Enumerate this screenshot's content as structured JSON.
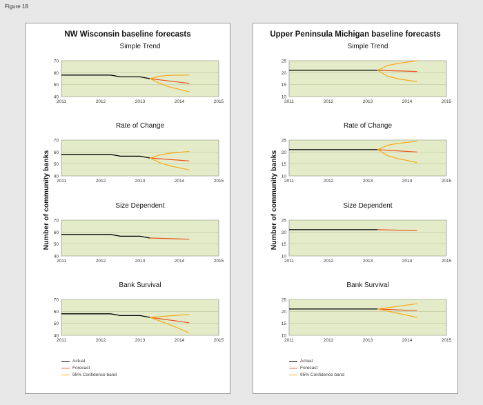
{
  "figure_label": "Figure 18",
  "panels": [
    {
      "title": "NW Wisconsin baseline forecasts",
      "ylabel": "Number of community banks",
      "legend": [
        "Actual",
        "Forecast",
        "95% Confidence band"
      ]
    },
    {
      "title": "Upper Peninsula Michigan baseline forecasts",
      "ylabel": "Number of community banks",
      "legend": [
        "Actual",
        "Forecast",
        "95% Confidence band"
      ]
    }
  ],
  "colors": {
    "actual": "#000000",
    "forecast": "#e8531c",
    "band": "#f7a81b",
    "plot_bg": "#e4ebc9",
    "grid": "#bcc79b"
  },
  "chart_data": [
    {
      "type": "line",
      "panel": 0,
      "title": "Simple Trend",
      "xlim": [
        2011,
        2015
      ],
      "xticks": [
        2011,
        2012,
        2013,
        2014,
        2015
      ],
      "ylim": [
        40,
        70
      ],
      "yticks": [
        40,
        50,
        60,
        70
      ],
      "series": [
        {
          "name": "Actual",
          "kind": "actual",
          "x": [
            2011,
            2012.25,
            2012.5,
            2013,
            2013.25
          ],
          "y": [
            58,
            58,
            56.5,
            56.5,
            55
          ]
        },
        {
          "name": "Forecast",
          "kind": "forecast",
          "x": [
            2013.25,
            2014.25
          ],
          "y": [
            55,
            51
          ]
        },
        {
          "name": "95% Confidence band",
          "kind": "band",
          "x": [
            2013.25,
            2013.5,
            2013.75,
            2014.25
          ],
          "y": [
            55,
            57,
            57.8,
            58
          ]
        },
        {
          "name": "95% Confidence band",
          "kind": "band",
          "x": [
            2013.25,
            2013.5,
            2013.75,
            2014.25
          ],
          "y": [
            55,
            51,
            48,
            44
          ]
        }
      ]
    },
    {
      "type": "line",
      "panel": 0,
      "title": "Rate of Change",
      "xlim": [
        2011,
        2015
      ],
      "xticks": [
        2011,
        2012,
        2013,
        2014,
        2015
      ],
      "ylim": [
        40,
        70
      ],
      "yticks": [
        40,
        50,
        60,
        70
      ],
      "series": [
        {
          "name": "Actual",
          "kind": "actual",
          "x": [
            2011,
            2012.25,
            2012.5,
            2013,
            2013.25
          ],
          "y": [
            58,
            58,
            56.5,
            56.5,
            55
          ]
        },
        {
          "name": "Forecast",
          "kind": "forecast",
          "x": [
            2013.25,
            2014.25
          ],
          "y": [
            55,
            52.5
          ]
        },
        {
          "name": "95% Confidence band",
          "kind": "band",
          "x": [
            2013.25,
            2013.5,
            2013.75,
            2014.25
          ],
          "y": [
            55,
            57.5,
            59,
            60.5
          ]
        },
        {
          "name": "95% Confidence band",
          "kind": "band",
          "x": [
            2013.25,
            2013.5,
            2013.75,
            2014.25
          ],
          "y": [
            55,
            51,
            48.5,
            45
          ]
        }
      ]
    },
    {
      "type": "line",
      "panel": 0,
      "title": "Size Dependent",
      "xlim": [
        2011,
        2015
      ],
      "xticks": [
        2011,
        2012,
        2013,
        2014,
        2015
      ],
      "ylim": [
        40,
        70
      ],
      "yticks": [
        40,
        50,
        60,
        70
      ],
      "series": [
        {
          "name": "Actual",
          "kind": "actual",
          "x": [
            2011,
            2012.25,
            2012.5,
            2013,
            2013.25
          ],
          "y": [
            58,
            58,
            56.5,
            56.5,
            55
          ]
        },
        {
          "name": "Forecast",
          "kind": "forecast",
          "x": [
            2013.25,
            2014.25
          ],
          "y": [
            55,
            54
          ]
        }
      ]
    },
    {
      "type": "line",
      "panel": 0,
      "title": "Bank Survival",
      "xlim": [
        2011,
        2015
      ],
      "xticks": [
        2011,
        2012,
        2013,
        2014,
        2015
      ],
      "ylim": [
        40,
        70
      ],
      "yticks": [
        40,
        50,
        60,
        70
      ],
      "series": [
        {
          "name": "Actual",
          "kind": "actual",
          "x": [
            2011,
            2012.25,
            2012.5,
            2013,
            2013.25
          ],
          "y": [
            58,
            58,
            56.5,
            56.5,
            55
          ]
        },
        {
          "name": "Forecast",
          "kind": "forecast",
          "x": [
            2013.25,
            2014.25
          ],
          "y": [
            55,
            50.5
          ]
        },
        {
          "name": "95% Confidence band",
          "kind": "band",
          "x": [
            2013.25,
            2014.25
          ],
          "y": [
            55,
            57.5
          ]
        },
        {
          "name": "95% Confidence band",
          "kind": "band",
          "x": [
            2013.25,
            2013.75,
            2014.25
          ],
          "y": [
            55,
            49,
            42
          ]
        }
      ]
    },
    {
      "type": "line",
      "panel": 1,
      "title": "Simple Trend",
      "xlim": [
        2011,
        2015
      ],
      "xticks": [
        2011,
        2012,
        2013,
        2014,
        2015
      ],
      "ylim": [
        10,
        25
      ],
      "yticks": [
        10,
        15,
        20,
        25
      ],
      "series": [
        {
          "name": "Actual",
          "kind": "actual",
          "x": [
            2011,
            2013.25
          ],
          "y": [
            21,
            21
          ]
        },
        {
          "name": "Forecast",
          "kind": "forecast",
          "x": [
            2013.25,
            2014.25
          ],
          "y": [
            21,
            20.5
          ]
        },
        {
          "name": "95% Confidence band",
          "kind": "band",
          "x": [
            2013.25,
            2013.5,
            2013.75,
            2014.25
          ],
          "y": [
            21,
            23,
            23.8,
            25
          ]
        },
        {
          "name": "95% Confidence band",
          "kind": "band",
          "x": [
            2013.25,
            2013.5,
            2013.75,
            2014.25
          ],
          "y": [
            21,
            18.5,
            17.5,
            16.2
          ]
        }
      ]
    },
    {
      "type": "line",
      "panel": 1,
      "title": "Rate of Change",
      "xlim": [
        2011,
        2015
      ],
      "xticks": [
        2011,
        2012,
        2013,
        2014,
        2015
      ],
      "ylim": [
        10,
        25
      ],
      "yticks": [
        10,
        15,
        20,
        25
      ],
      "series": [
        {
          "name": "Actual",
          "kind": "actual",
          "x": [
            2011,
            2013.25
          ],
          "y": [
            21,
            21
          ]
        },
        {
          "name": "Forecast",
          "kind": "forecast",
          "x": [
            2013.25,
            2014.25
          ],
          "y": [
            21,
            20
          ]
        },
        {
          "name": "95% Confidence band",
          "kind": "band",
          "x": [
            2013.25,
            2013.5,
            2013.75,
            2014.25
          ],
          "y": [
            21,
            22.8,
            23.6,
            24.5
          ]
        },
        {
          "name": "95% Confidence band",
          "kind": "band",
          "x": [
            2013.25,
            2013.5,
            2013.75,
            2014.25
          ],
          "y": [
            21,
            18.5,
            17.3,
            15.6
          ]
        }
      ]
    },
    {
      "type": "line",
      "panel": 1,
      "title": "Size Dependent",
      "xlim": [
        2011,
        2015
      ],
      "xticks": [
        2011,
        2012,
        2013,
        2014,
        2015
      ],
      "ylim": [
        10,
        25
      ],
      "yticks": [
        10,
        15,
        20,
        25
      ],
      "series": [
        {
          "name": "Actual",
          "kind": "actual",
          "x": [
            2011,
            2013.25
          ],
          "y": [
            21,
            21
          ]
        },
        {
          "name": "Forecast",
          "kind": "forecast",
          "x": [
            2013.25,
            2014.25
          ],
          "y": [
            21,
            20.6
          ]
        }
      ]
    },
    {
      "type": "line",
      "panel": 1,
      "title": "Bank Survival",
      "xlim": [
        2011,
        2015
      ],
      "xticks": [
        2011,
        2012,
        2013,
        2014,
        2015
      ],
      "ylim": [
        10,
        25
      ],
      "yticks": [
        10,
        15,
        20,
        25
      ],
      "series": [
        {
          "name": "Actual",
          "kind": "actual",
          "x": [
            2011,
            2013.25
          ],
          "y": [
            21,
            21
          ]
        },
        {
          "name": "Forecast",
          "kind": "forecast",
          "x": [
            2013.25,
            2014.25
          ],
          "y": [
            21,
            20.3
          ]
        },
        {
          "name": "95% Confidence band",
          "kind": "band",
          "x": [
            2013.25,
            2014.25
          ],
          "y": [
            21,
            23.2
          ]
        },
        {
          "name": "95% Confidence band",
          "kind": "band",
          "x": [
            2013.25,
            2014.25
          ],
          "y": [
            21,
            17.5
          ]
        }
      ]
    }
  ]
}
